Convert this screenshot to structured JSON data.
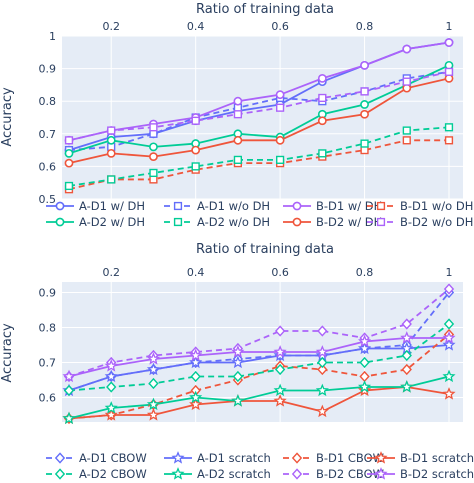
{
  "chart_data": [
    {
      "type": "line",
      "title": "",
      "xlabel": "Ratio of training data",
      "ylabel": "Accuracy",
      "x": [
        0.1,
        0.2,
        0.3,
        0.4,
        0.5,
        0.6,
        0.7,
        0.8,
        0.9,
        1.0
      ],
      "xlim": [
        0.1,
        1.0
      ],
      "ylim": [
        0.5,
        1.0
      ],
      "x_ticks": [
        0.2,
        0.4,
        0.6,
        0.8,
        1.0
      ],
      "x_tick_labels": [
        "0.2",
        "0.4",
        "0.6",
        "0.8",
        "1"
      ],
      "y_ticks": [
        0.5,
        0.6,
        0.7,
        0.8,
        0.9,
        1.0
      ],
      "y_tick_labels": [
        "0.5",
        "0.6",
        "0.7",
        "0.8",
        "0.9",
        "1"
      ],
      "x_axis_side": "top",
      "grid": true,
      "legend_placement": "bottom",
      "series": [
        {
          "name": "A-D1 w/ DH",
          "color": "#636efa",
          "dash": "solid",
          "marker": "circle",
          "values": [
            0.65,
            0.69,
            0.7,
            0.74,
            0.77,
            0.79,
            0.86,
            0.91,
            0.96,
            0.98
          ]
        },
        {
          "name": "A-D1 w/o DH",
          "color": "#636efa",
          "dash": "dash",
          "marker": "square",
          "values": [
            0.65,
            0.66,
            0.7,
            0.75,
            0.78,
            0.81,
            0.8,
            0.83,
            0.87,
            0.89
          ]
        },
        {
          "name": "B-D1 w/ DH",
          "color": "#ab63fa",
          "dash": "solid",
          "marker": "circle",
          "values": [
            0.68,
            0.71,
            0.73,
            0.75,
            0.8,
            0.82,
            0.87,
            0.91,
            0.96,
            0.98
          ]
        },
        {
          "name": "B-D1 w/o DH",
          "color": "#ef553b",
          "dash": "dash",
          "marker": "square",
          "values": [
            0.53,
            0.56,
            0.56,
            0.59,
            0.61,
            0.61,
            0.63,
            0.65,
            0.68,
            0.68
          ]
        },
        {
          "name": "A-D2 w/ DH",
          "color": "#00cc96",
          "dash": "solid",
          "marker": "circle",
          "values": [
            0.64,
            0.68,
            0.66,
            0.67,
            0.7,
            0.69,
            0.76,
            0.79,
            0.85,
            0.91
          ]
        },
        {
          "name": "A-D2 w/o DH",
          "color": "#00cc96",
          "dash": "dash",
          "marker": "square",
          "values": [
            0.54,
            0.56,
            0.58,
            0.6,
            0.62,
            0.62,
            0.64,
            0.67,
            0.71,
            0.72
          ]
        },
        {
          "name": "B-D2 w/ DH",
          "color": "#ef553b",
          "dash": "solid",
          "marker": "circle",
          "values": [
            0.61,
            0.64,
            0.63,
            0.65,
            0.68,
            0.68,
            0.74,
            0.76,
            0.84,
            0.87
          ]
        },
        {
          "name": "B-D2 w/o DH",
          "color": "#ab63fa",
          "dash": "dash",
          "marker": "square",
          "values": [
            0.68,
            0.71,
            0.72,
            0.74,
            0.76,
            0.78,
            0.81,
            0.83,
            0.86,
            0.89
          ]
        }
      ],
      "legend_order": [
        "A-D1 w/ DH",
        "A-D1 w/o DH",
        "B-D1 w/ DH",
        "B-D1 w/o DH",
        "A-D2 w/ DH",
        "A-D2 w/o DH",
        "B-D2 w/ DH",
        "B-D2 w/o DH"
      ]
    },
    {
      "type": "line",
      "title": "",
      "xlabel": "Ratio of training data",
      "ylabel": "Accuracy",
      "x": [
        0.1,
        0.2,
        0.3,
        0.4,
        0.5,
        0.6,
        0.7,
        0.8,
        0.9,
        1.0
      ],
      "xlim": [
        0.1,
        1.0
      ],
      "ylim": [
        0.53,
        0.93
      ],
      "x_ticks": [
        0.2,
        0.4,
        0.6,
        0.8,
        1.0
      ],
      "x_tick_labels": [
        "0.2",
        "0.4",
        "0.6",
        "0.8",
        "1"
      ],
      "y_ticks": [
        0.6,
        0.7,
        0.8,
        0.9
      ],
      "y_tick_labels": [
        "0.6",
        "0.7",
        "0.8",
        "0.9"
      ],
      "x_axis_side": "top",
      "grid": true,
      "legend_placement": "bottom",
      "series": [
        {
          "name": "A-D1 CBOW",
          "color": "#636efa",
          "dash": "dash",
          "marker": "diamond",
          "values": [
            0.62,
            0.66,
            0.68,
            0.7,
            0.71,
            0.72,
            0.72,
            0.74,
            0.75,
            0.9
          ]
        },
        {
          "name": "A-D1 scratch",
          "color": "#636efa",
          "dash": "solid",
          "marker": "star",
          "values": [
            0.62,
            0.66,
            0.68,
            0.7,
            0.7,
            0.72,
            0.72,
            0.74,
            0.74,
            0.75
          ]
        },
        {
          "name": "B-D1 CBOW",
          "color": "#ef553b",
          "dash": "dash",
          "marker": "diamond",
          "values": [
            0.54,
            0.55,
            0.58,
            0.62,
            0.65,
            0.69,
            0.68,
            0.66,
            0.68,
            0.78
          ]
        },
        {
          "name": "B-D1 scratch",
          "color": "#ef553b",
          "dash": "solid",
          "marker": "star",
          "values": [
            0.54,
            0.55,
            0.55,
            0.58,
            0.59,
            0.59,
            0.56,
            0.62,
            0.63,
            0.61
          ]
        },
        {
          "name": "A-D2 CBOW",
          "color": "#00cc96",
          "dash": "dash",
          "marker": "diamond",
          "values": [
            0.62,
            0.63,
            0.64,
            0.66,
            0.66,
            0.68,
            0.7,
            0.7,
            0.72,
            0.81
          ]
        },
        {
          "name": "A-D2 scratch",
          "color": "#00cc96",
          "dash": "solid",
          "marker": "star",
          "values": [
            0.54,
            0.57,
            0.58,
            0.6,
            0.59,
            0.62,
            0.62,
            0.63,
            0.63,
            0.66
          ]
        },
        {
          "name": "B-D2 CBOW",
          "color": "#ab63fa",
          "dash": "dash",
          "marker": "diamond",
          "values": [
            0.66,
            0.7,
            0.72,
            0.73,
            0.74,
            0.79,
            0.79,
            0.77,
            0.81,
            0.91
          ]
        },
        {
          "name": "B-D2 scratch",
          "color": "#ab63fa",
          "dash": "solid",
          "marker": "star",
          "values": [
            0.66,
            0.69,
            0.71,
            0.72,
            0.73,
            0.73,
            0.73,
            0.76,
            0.77,
            0.77
          ]
        }
      ],
      "legend_order": [
        "A-D1 CBOW",
        "A-D1 scratch",
        "B-D1 CBOW",
        "B-D1 scratch",
        "A-D2 CBOW",
        "A-D2 scratch",
        "B-D2 CBOW",
        "B-D2 scratch"
      ]
    }
  ]
}
